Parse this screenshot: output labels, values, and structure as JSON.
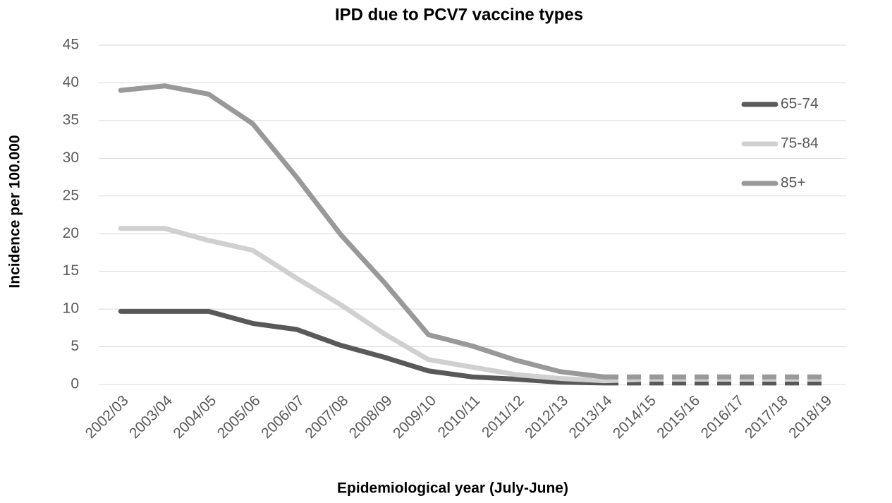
{
  "chart_data": {
    "type": "line",
    "title": "IPD due to PCV7 vaccine types",
    "x_label": "Epidemiological year (July-June)",
    "y_label": "Incidence per 100.000",
    "categories": [
      "2002/03",
      "2003/04",
      "2004/05",
      "2005/06",
      "2006/07",
      "2007/08",
      "2008/09",
      "2009/10",
      "2010/11",
      "2011/12",
      "2012/13",
      "2013/14",
      "2014/15",
      "2015/16",
      "2016/17",
      "2017/18",
      "2018/19"
    ],
    "series": [
      {
        "name": "65-74",
        "color": "#595959",
        "values": [
          9.7,
          9.7,
          9.7,
          8.1,
          7.3,
          5.2,
          3.6,
          1.8,
          1.0,
          0.7,
          0.3,
          0.2,
          null,
          null,
          null,
          null,
          null
        ],
        "dashed_values": [
          null,
          null,
          null,
          null,
          null,
          null,
          null,
          null,
          null,
          null,
          null,
          0.2,
          0.2,
          0.2,
          0.2,
          0.2,
          0.2
        ]
      },
      {
        "name": "75-84",
        "color": "#d0d0d0",
        "values": [
          20.7,
          20.7,
          19.1,
          17.8,
          14.1,
          10.6,
          6.7,
          3.3,
          2.3,
          1.3,
          0.8,
          0.5,
          null,
          null,
          null,
          null,
          null
        ],
        "dashed_values": [
          null,
          null,
          null,
          null,
          null,
          null,
          null,
          null,
          null,
          null,
          null,
          0.5,
          0.7,
          0.7,
          0.7,
          0.7,
          0.7
        ]
      },
      {
        "name": "85+",
        "color": "#999999",
        "values": [
          39.0,
          39.6,
          38.5,
          34.6,
          27.5,
          19.9,
          13.5,
          6.6,
          5.1,
          3.2,
          1.7,
          1.0,
          null,
          null,
          null,
          null,
          null
        ],
        "dashed_values": [
          null,
          null,
          null,
          null,
          null,
          null,
          null,
          null,
          null,
          null,
          null,
          1.0,
          1.0,
          1.0,
          1.0,
          1.0,
          1.0
        ]
      }
    ],
    "ylim": [
      0,
      45
    ],
    "yticks": [
      0,
      5,
      10,
      15,
      20,
      25,
      30,
      35,
      40,
      45
    ],
    "grid": true,
    "legend": "right"
  }
}
